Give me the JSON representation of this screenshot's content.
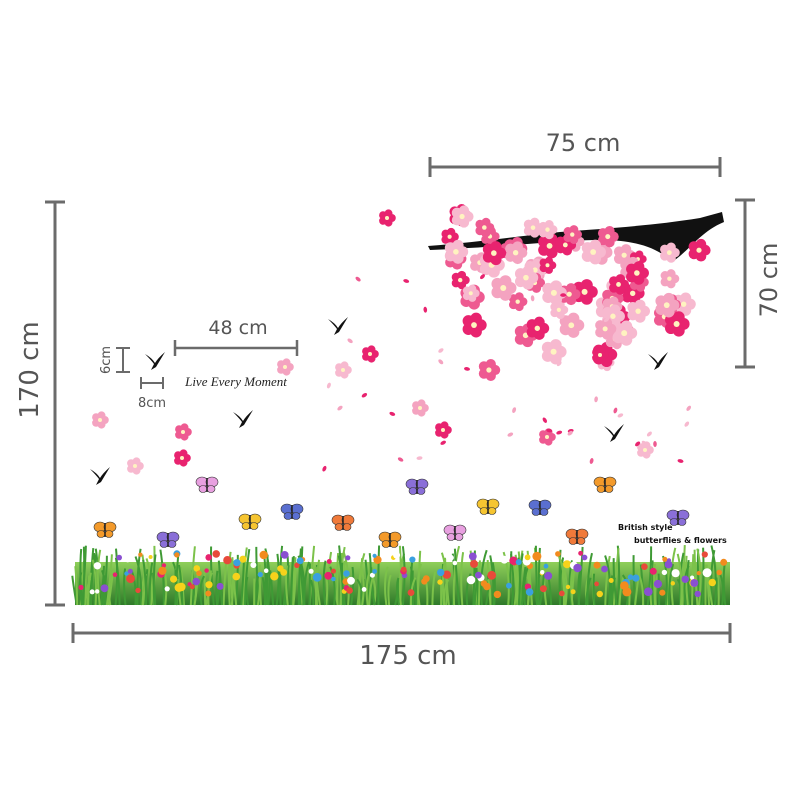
{
  "dimensions": {
    "branch_width": "75 cm",
    "branch_height": "70 cm",
    "total_height": "170 cm",
    "text_width": "48 cm",
    "bird_height": "6cm",
    "bird_width": "8cm",
    "total_width": "175 cm"
  },
  "artwork": {
    "script_text": "Live Every Moment",
    "caption_line1": "British style",
    "caption_line2": "butterflies & flowers"
  }
}
